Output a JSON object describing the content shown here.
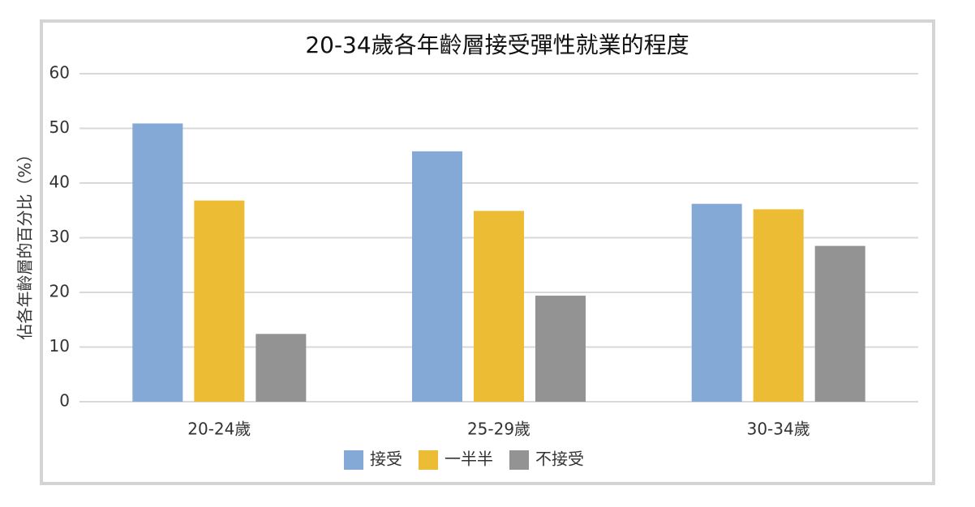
{
  "chart_data": {
    "type": "bar",
    "title": "20-34歲各年齡層接受彈性就業的程度",
    "y_label": "佔各年齡層的百分比（%）",
    "categories": [
      "20-24歲",
      "25-29歲",
      "30-34歲"
    ],
    "series": [
      {
        "name": "接受",
        "color": "#84a9d6",
        "values": [
          50.9,
          45.8,
          36.2
        ]
      },
      {
        "name": "一半半",
        "color": "#ecbd34",
        "values": [
          36.8,
          34.9,
          35.2
        ]
      },
      {
        "name": "不接受",
        "color": "#939393",
        "values": [
          12.4,
          19.4,
          28.5
        ]
      }
    ],
    "ylim": [
      0,
      60
    ],
    "yticks": [
      0,
      10,
      20,
      30,
      40,
      50,
      60
    ],
    "grid": true
  }
}
